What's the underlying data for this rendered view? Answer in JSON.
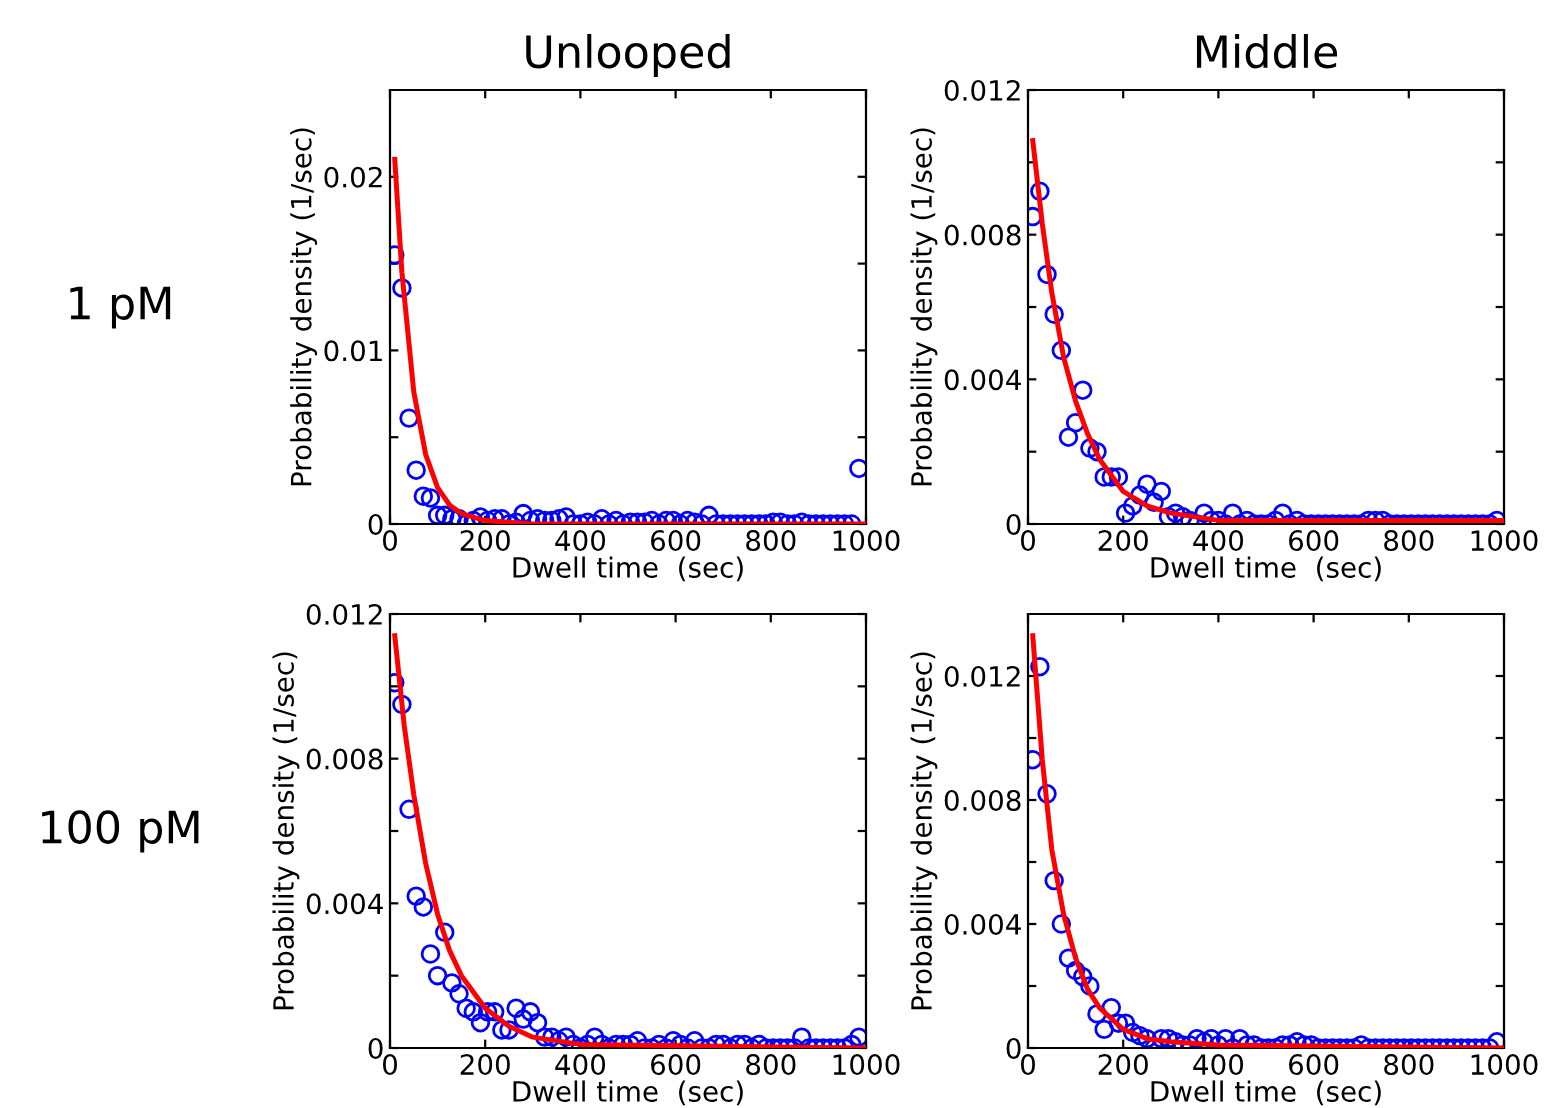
{
  "chart_data": [
    {
      "type": "scatter",
      "title": "Unlooped",
      "annotations": [
        "1 pM"
      ],
      "xlabel": "Dwell time  (sec)",
      "ylabel": "Probability density (1/sec)",
      "xlim": [
        0,
        1000
      ],
      "xticks": [
        0,
        200,
        400,
        600,
        800,
        1000
      ],
      "ylim": [
        0,
        0.025
      ],
      "yticks": [
        0,
        {
          "value": 0.005,
          "label": null
        },
        0.01,
        {
          "value": 0.015,
          "label": null
        },
        0.02
      ],
      "grid": false,
      "marker": "circle",
      "x": [
        10,
        25,
        40,
        55,
        70,
        85,
        100,
        115,
        130,
        145,
        160,
        175,
        190,
        205,
        220,
        235,
        250,
        265,
        280,
        295,
        310,
        325,
        340,
        355,
        370,
        385,
        400,
        415,
        430,
        445,
        460,
        475,
        490,
        505,
        520,
        535,
        550,
        565,
        580,
        595,
        610,
        625,
        640,
        655,
        670,
        685,
        700,
        715,
        730,
        745,
        760,
        775,
        790,
        805,
        820,
        835,
        850,
        865,
        880,
        895,
        910,
        925,
        940,
        955,
        970,
        985
      ],
      "series": [
        {
          "type": "scatter",
          "color": "#0000ff",
          "values": [
            0.0155,
            0.0136,
            0.0061,
            0.0031,
            0.0016,
            0.0015,
            0.0005,
            0.0005,
            0.0003,
            0.0003,
            0,
            0.0002,
            0.0004,
            0.0002,
            0.0003,
            0.0003,
            0,
            0.0001,
            0.0006,
            0.0002,
            0.0003,
            0.0002,
            0.0002,
            0.0003,
            0.0004,
            0,
            0,
            0.0001,
            0,
            0.0003,
            0,
            0.0002,
            0,
            0.0001,
            0.0001,
            0.0001,
            0.0002,
            0,
            0.0002,
            0.0002,
            0,
            0.0002,
            0.0001,
            0,
            0.0005,
            0,
            0,
            0,
            0,
            0,
            0,
            0,
            0,
            0.0001,
            0.0001,
            0,
            0,
            0.0001,
            0,
            0,
            0,
            0,
            0,
            0,
            0,
            0.0032
          ]
        },
        {
          "type": "line",
          "color": "#ff0000",
          "line_style": "solid",
          "marker": "none",
          "x": [
            10,
            25,
            50,
            75,
            100,
            125,
            150,
            200,
            250,
            300,
            1000
          ],
          "values": [
            0.021,
            0.0145,
            0.0076,
            0.004,
            0.0021,
            0.0011,
            0.0006,
            0.0002,
            0.0001,
            0,
            0
          ]
        }
      ]
    },
    {
      "type": "scatter",
      "title": "Middle",
      "xlabel": "Dwell time  (sec)",
      "ylabel": "Probability density (1/sec)",
      "xlim": [
        0,
        1000
      ],
      "xticks": [
        0,
        200,
        400,
        600,
        800,
        1000
      ],
      "ylim": [
        0,
        0.012
      ],
      "yticks": [
        0,
        {
          "value": 0.002,
          "label": null
        },
        0.004,
        {
          "value": 0.006,
          "label": null
        },
        0.008,
        {
          "value": 0.01,
          "label": null
        },
        0.012
      ],
      "grid": false,
      "marker": "circle",
      "x": [
        10,
        25,
        40,
        55,
        70,
        85,
        100,
        115,
        130,
        145,
        160,
        175,
        190,
        205,
        220,
        235,
        250,
        265,
        280,
        295,
        310,
        325,
        340,
        355,
        370,
        385,
        400,
        415,
        430,
        445,
        460,
        475,
        490,
        505,
        520,
        535,
        550,
        565,
        580,
        595,
        610,
        625,
        640,
        655,
        670,
        685,
        700,
        715,
        730,
        745,
        760,
        775,
        790,
        805,
        820,
        835,
        850,
        865,
        880,
        895,
        910,
        925,
        940,
        955,
        970,
        985
      ],
      "series": [
        {
          "type": "scatter",
          "color": "#0000ff",
          "values": [
            0.0085,
            0.0092,
            0.0069,
            0.0058,
            0.0048,
            0.0024,
            0.0028,
            0.0037,
            0.0021,
            0.002,
            0.0013,
            0.0013,
            0.0013,
            0.0003,
            0.0005,
            0.0008,
            0.0011,
            0.0006,
            0.0009,
            0.0002,
            0.0003,
            0.0002,
            0.0001,
            0,
            0.0003,
            0.0001,
            0.0001,
            0,
            0.0003,
            0,
            0.0001,
            0,
            0,
            0,
            0.0001,
            0.0003,
            0,
            0.0001,
            0,
            0,
            0,
            0,
            0,
            0,
            0,
            0,
            0,
            0.0001,
            0.0001,
            0.0001,
            0,
            0,
            0,
            0,
            0,
            0,
            0,
            0,
            0,
            0,
            0,
            0,
            0,
            0,
            0,
            0.0001
          ]
        },
        {
          "type": "line",
          "color": "#ff0000",
          "line_style": "solid",
          "marker": "none",
          "x": [
            10,
            30,
            50,
            75,
            100,
            125,
            150,
            200,
            250,
            300,
            400,
            600,
            1000
          ],
          "values": [
            0.0106,
            0.0083,
            0.0064,
            0.0046,
            0.0034,
            0.0025,
            0.0018,
            0.0009,
            0.0005,
            0.0003,
            0.0001,
            0.0001,
            0.0001
          ]
        }
      ]
    },
    {
      "type": "scatter",
      "annotations": [
        "100 pM"
      ],
      "xlabel": "Dwell time  (sec)",
      "ylabel": "Probability density (1/sec)",
      "xlim": [
        0,
        1000
      ],
      "xticks": [
        0,
        200,
        400,
        600,
        800,
        1000
      ],
      "ylim": [
        0,
        0.012
      ],
      "yticks": [
        0,
        {
          "value": 0.002,
          "label": null
        },
        0.004,
        {
          "value": 0.006,
          "label": null
        },
        0.008,
        {
          "value": 0.01,
          "label": null
        },
        0.012
      ],
      "grid": false,
      "marker": "circle",
      "x": [
        10,
        25,
        40,
        55,
        70,
        85,
        100,
        115,
        130,
        145,
        160,
        175,
        190,
        205,
        220,
        235,
        250,
        265,
        280,
        295,
        310,
        325,
        340,
        355,
        370,
        385,
        400,
        415,
        430,
        445,
        460,
        475,
        490,
        505,
        520,
        535,
        550,
        565,
        580,
        595,
        610,
        625,
        640,
        655,
        670,
        685,
        700,
        715,
        730,
        745,
        760,
        775,
        790,
        805,
        820,
        835,
        850,
        865,
        880,
        895,
        910,
        925,
        940,
        955,
        970,
        985
      ],
      "series": [
        {
          "type": "scatter",
          "color": "#0000ff",
          "values": [
            0.0101,
            0.0095,
            0.0066,
            0.0042,
            0.0039,
            0.0026,
            0.002,
            0.0032,
            0.0018,
            0.0015,
            0.0011,
            0.001,
            0.0007,
            0.001,
            0.001,
            0.0005,
            0.0005,
            0.0011,
            0.0008,
            0.001,
            0.0007,
            0.0003,
            0.0003,
            0.0002,
            0.0003,
            0.0001,
            0,
            0.0001,
            0.0003,
            0.0001,
            0,
            0.0001,
            0.0001,
            0.0001,
            0.0002,
            0,
            0,
            0.0001,
            0,
            0.0002,
            0.0001,
            0,
            0.0002,
            0,
            0,
            0.0001,
            0.0001,
            0,
            0.0001,
            0.0001,
            0,
            0.0001,
            0,
            0,
            0,
            0,
            0,
            0.0003,
            0,
            0,
            0,
            0,
            0,
            0,
            0.0001,
            0.0003
          ]
        },
        {
          "type": "line",
          "color": "#ff0000",
          "line_style": "solid",
          "marker": "none",
          "x": [
            10,
            30,
            50,
            75,
            100,
            125,
            150,
            200,
            250,
            300,
            400,
            1000
          ],
          "values": [
            0.0114,
            0.0089,
            0.007,
            0.0051,
            0.0037,
            0.0027,
            0.002,
            0.0011,
            0.0006,
            0.0003,
            0.0001,
            0
          ]
        }
      ]
    },
    {
      "type": "scatter",
      "xlabel": "Dwell time  (sec)",
      "ylabel": "Probability density (1/sec)",
      "xlim": [
        0,
        1000
      ],
      "xticks": [
        0,
        200,
        400,
        600,
        800,
        1000
      ],
      "ylim": [
        0,
        0.014
      ],
      "yticks": [
        0,
        {
          "value": 0.002,
          "label": null
        },
        0.004,
        {
          "value": 0.006,
          "label": null
        },
        0.008,
        {
          "value": 0.01,
          "label": null
        },
        0.012
      ],
      "grid": false,
      "marker": "circle",
      "x": [
        10,
        25,
        40,
        55,
        70,
        85,
        100,
        115,
        130,
        145,
        160,
        175,
        190,
        205,
        220,
        235,
        250,
        265,
        280,
        295,
        310,
        325,
        340,
        355,
        370,
        385,
        400,
        415,
        430,
        445,
        460,
        475,
        490,
        505,
        520,
        535,
        550,
        565,
        580,
        595,
        610,
        625,
        640,
        655,
        670,
        685,
        700,
        715,
        730,
        745,
        760,
        775,
        790,
        805,
        820,
        835,
        850,
        865,
        880,
        895,
        910,
        925,
        940,
        955,
        970,
        985
      ],
      "series": [
        {
          "type": "scatter",
          "color": "#0000ff",
          "values": [
            0.0093,
            0.0123,
            0.0082,
            0.0054,
            0.004,
            0.0029,
            0.0025,
            0.0023,
            0.002,
            0.0011,
            0.0006,
            0.0013,
            0.0008,
            0.0008,
            0.0005,
            0.0004,
            0.0003,
            0,
            0.0003,
            0.0003,
            0.0002,
            0.0001,
            0.0001,
            0.0003,
            0.0002,
            0.0003,
            0.0001,
            0.0003,
            0,
            0.0003,
            0.0001,
            0.0001,
            0,
            0,
            0,
            0.0001,
            0.0001,
            0.0002,
            0.0001,
            0.0001,
            0,
            0,
            0,
            0,
            0,
            0,
            0.0001,
            0,
            0,
            0,
            0,
            0,
            0,
            0,
            0,
            0,
            0,
            0,
            0,
            0,
            0,
            0,
            0,
            0,
            0,
            0.0002
          ]
        },
        {
          "type": "line",
          "color": "#ff0000",
          "line_style": "solid",
          "marker": "none",
          "x": [
            10,
            30,
            50,
            75,
            100,
            125,
            150,
            200,
            250,
            300,
            400,
            1000
          ],
          "values": [
            0.0133,
            0.0093,
            0.0064,
            0.0043,
            0.0029,
            0.0019,
            0.0013,
            0.0006,
            0.0003,
            0.0002,
            0.0001,
            0
          ]
        }
      ]
    }
  ]
}
